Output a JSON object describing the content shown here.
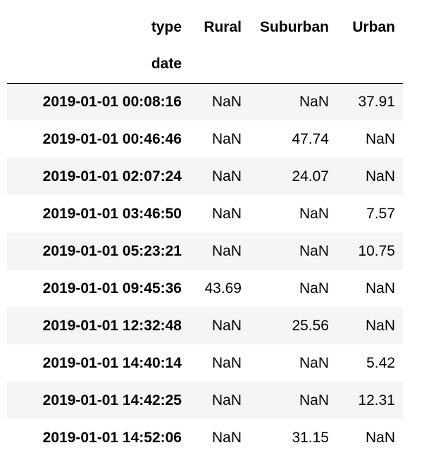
{
  "table": {
    "column_header": {
      "columns_name": "type",
      "columns": [
        "Rural",
        "Suburban",
        "Urban"
      ]
    },
    "index_name": "date",
    "rows": [
      {
        "index": "2019-01-01 00:08:16",
        "values": [
          "NaN",
          "NaN",
          "37.91"
        ]
      },
      {
        "index": "2019-01-01 00:46:46",
        "values": [
          "NaN",
          "47.74",
          "NaN"
        ]
      },
      {
        "index": "2019-01-01 02:07:24",
        "values": [
          "NaN",
          "24.07",
          "NaN"
        ]
      },
      {
        "index": "2019-01-01 03:46:50",
        "values": [
          "NaN",
          "NaN",
          "7.57"
        ]
      },
      {
        "index": "2019-01-01 05:23:21",
        "values": [
          "NaN",
          "NaN",
          "10.75"
        ]
      },
      {
        "index": "2019-01-01 09:45:36",
        "values": [
          "43.69",
          "NaN",
          "NaN"
        ]
      },
      {
        "index": "2019-01-01 12:32:48",
        "values": [
          "NaN",
          "25.56",
          "NaN"
        ]
      },
      {
        "index": "2019-01-01 14:40:14",
        "values": [
          "NaN",
          "NaN",
          "5.42"
        ]
      },
      {
        "index": "2019-01-01 14:42:25",
        "values": [
          "NaN",
          "NaN",
          "12.31"
        ]
      },
      {
        "index": "2019-01-01 14:52:06",
        "values": [
          "NaN",
          "31.15",
          "NaN"
        ]
      }
    ]
  }
}
